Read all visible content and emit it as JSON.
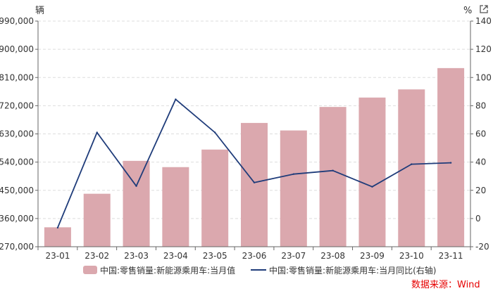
{
  "chart_data": {
    "type": "bar",
    "categories": [
      "23-01",
      "23-02",
      "23-03",
      "23-04",
      "23-05",
      "23-06",
      "23-07",
      "23-08",
      "23-09",
      "23-10",
      "23-11"
    ],
    "series": [
      {
        "name": "中国:零售销量:新能源乘用车:当月值",
        "type": "bar",
        "axis": "left",
        "color": "#dba8ae",
        "values": [
          332000,
          439000,
          544000,
          524000,
          580000,
          665000,
          641000,
          716000,
          746000,
          772000,
          840000
        ]
      },
      {
        "name": "中国:零售销量:新能源乘用车:当月同比(右轴)",
        "type": "line",
        "axis": "right",
        "color": "#1f3c7a",
        "values": [
          -6.5,
          61,
          23,
          84.5,
          61,
          25.5,
          31.5,
          34,
          22.5,
          38.5,
          39.5
        ]
      }
    ],
    "y_left": {
      "unit": "辆",
      "ylim": [
        270000,
        990000
      ],
      "ticks": [
        270000,
        360000,
        450000,
        540000,
        630000,
        720000,
        810000,
        900000,
        990000
      ],
      "tick_labels": [
        "270,000",
        "360,000",
        "450,000",
        "540,000",
        "630,000",
        "720,000",
        "810,000",
        "900,000",
        "990,000"
      ]
    },
    "y_right": {
      "unit": "%",
      "ylim": [
        -20,
        140
      ],
      "ticks": [
        -20,
        0,
        20,
        40,
        60,
        80,
        100,
        120,
        140
      ],
      "tick_labels": [
        "-20",
        "0",
        "20",
        "40",
        "60",
        "80",
        "100",
        "120",
        "140"
      ]
    },
    "grid": true,
    "legend": "bottom",
    "source": "数据来源：Wind"
  },
  "icons": {
    "export": "external-link-icon"
  }
}
